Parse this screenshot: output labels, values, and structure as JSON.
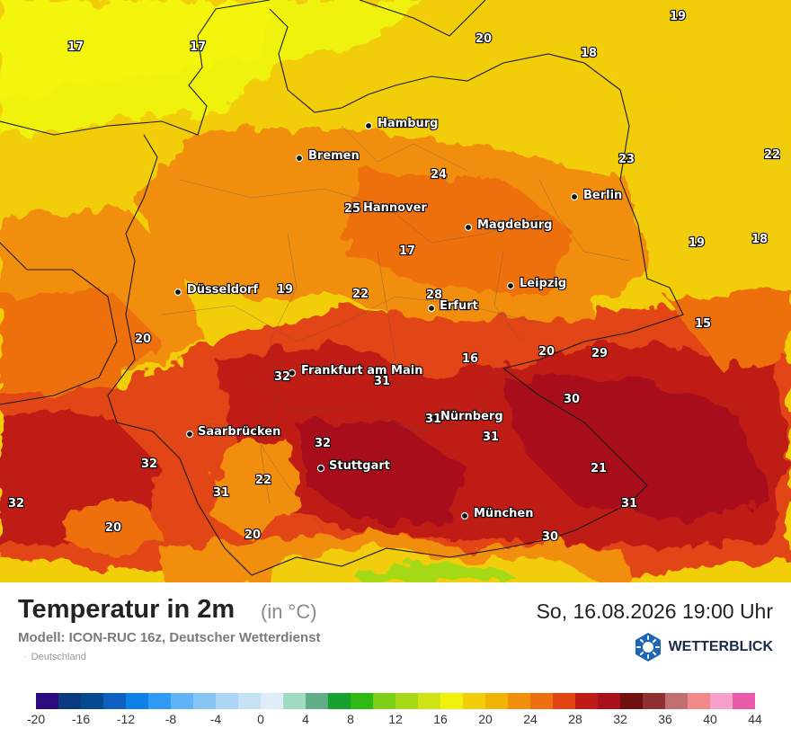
{
  "title": "Temperatur in 2m",
  "unit": "(in °C)",
  "datetime": "So, 16.08.2026 19:00 Uhr",
  "model": "Modell: ICON-RUC 16z, Deutscher Wetterdienst",
  "region": "Deutschland",
  "brand": "WETTERBLICK",
  "brand_icon": "wetterblick-logo-icon",
  "map": {
    "cities": [
      {
        "name": "Hamburg"
      },
      {
        "name": "Bremen"
      },
      {
        "name": "Hannover"
      },
      {
        "name": "Berlin"
      },
      {
        "name": "Magdeburg"
      },
      {
        "name": "Düsseldorf"
      },
      {
        "name": "Leipzig"
      },
      {
        "name": "Erfurt"
      },
      {
        "name": "Frankfurt am Main"
      },
      {
        "name": "Nürnberg"
      },
      {
        "name": "Saarbrücken"
      },
      {
        "name": "Stuttgart"
      },
      {
        "name": "München"
      }
    ],
    "temperatures": [
      "17",
      "17",
      "19",
      "20",
      "18",
      "22",
      "24",
      "23",
      "25",
      "17",
      "19",
      "18",
      "28",
      "19",
      "22",
      "15",
      "20",
      "29",
      "16",
      "20",
      "32",
      "31",
      "30",
      "31",
      "31",
      "32",
      "32",
      "21",
      "31",
      "22",
      "32",
      "31",
      "20",
      "20",
      "30"
    ]
  },
  "legend": {
    "colors": [
      "#2c0b7f",
      "#0a3a82",
      "#034a8f",
      "#0b60c0",
      "#0b81e8",
      "#2e9af5",
      "#60b4f5",
      "#86c6f5",
      "#abd6f6",
      "#c6e2f7",
      "#dfedf8",
      "#9edbc0",
      "#5fae86",
      "#15a030",
      "#2dba15",
      "#7ccf15",
      "#a5d915",
      "#cfe212",
      "#eef20c",
      "#f2cd0a",
      "#f2b307",
      "#f18e0a",
      "#ed6f10",
      "#e24414",
      "#bf1a17",
      "#a8101a",
      "#701010",
      "#903030",
      "#c07070",
      "#f08a8a",
      "#f5a0c8",
      "#ea5aab"
    ],
    "ticks": [
      "-20",
      "-16",
      "-12",
      "-8",
      "-4",
      "0",
      "4",
      "8",
      "12",
      "16",
      "20",
      "24",
      "28",
      "32",
      "36",
      "40",
      "44"
    ]
  }
}
